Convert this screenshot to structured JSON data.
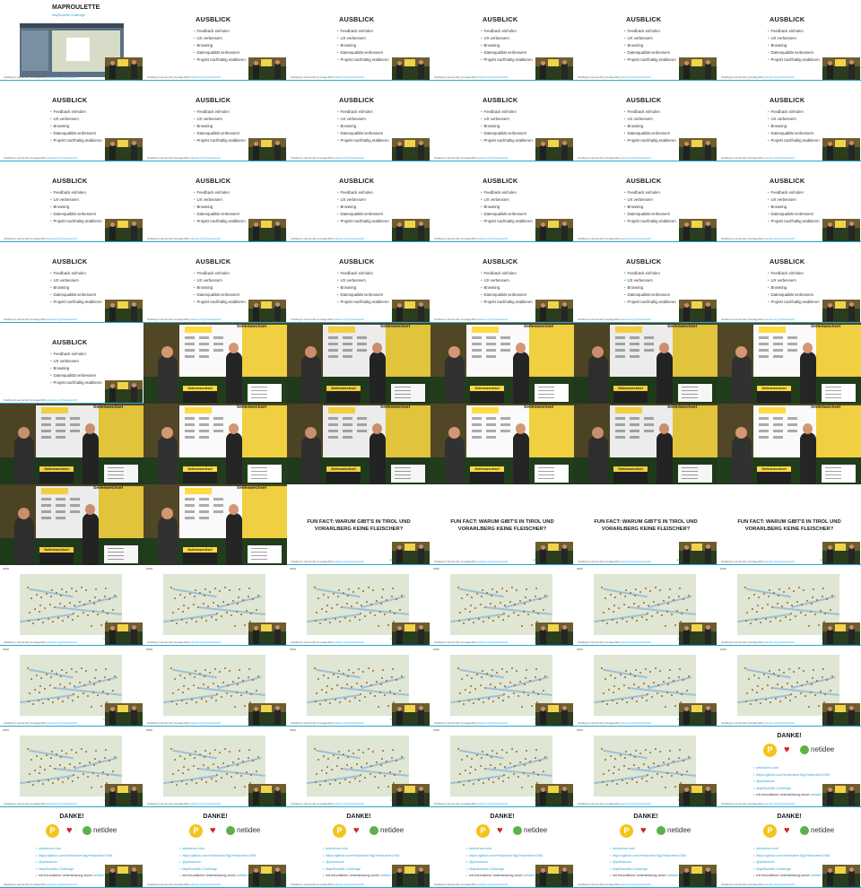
{
  "footer": {
    "text": "Vorarlberg im Lauf der Zeit | Linuxtage 2024",
    "link": "yetanother.org",
    "handle": "@Yetanotherstuff"
  },
  "maproulette": {
    "title": "MAPROULETTE",
    "subtitle": "MapRoulette-Challenge"
  },
  "ausblick": {
    "title": "AUSBLICK",
    "items": [
      "Feedback einholen",
      "UX verbessern",
      "Browsing",
      "Datenqualität verbessern",
      "Projekt nachhaltig etablieren"
    ]
  },
  "photo": {
    "sign": "Seitenwechsel"
  },
  "funfact": {
    "title": "FUN FACT: WARUM GIBT'S IN TIROL UND VORARLBERG KEINE FLEISCHER?"
  },
  "danke": {
    "title": "DANKE!",
    "logo_text": "netidee",
    "links": [
      "yetowcom.com",
      "https://github.com/YetAnotherTag/YetAnotherOSM",
      "@yetowcom",
      "MapRoulette-Challenge"
    ],
    "support_prefix": "mit freundlicher Unterstützung durch",
    "support_org": "netidee"
  },
  "tiles": [
    {
      "kind": "maproulette"
    },
    {
      "kind": "ausblick"
    },
    {
      "kind": "ausblick"
    },
    {
      "kind": "ausblick"
    },
    {
      "kind": "ausblick"
    },
    {
      "kind": "ausblick"
    },
    {
      "kind": "ausblick"
    },
    {
      "kind": "ausblick"
    },
    {
      "kind": "ausblick"
    },
    {
      "kind": "ausblick"
    },
    {
      "kind": "ausblick"
    },
    {
      "kind": "ausblick"
    },
    {
      "kind": "ausblick"
    },
    {
      "kind": "ausblick"
    },
    {
      "kind": "ausblick"
    },
    {
      "kind": "ausblick"
    },
    {
      "kind": "ausblick"
    },
    {
      "kind": "ausblick"
    },
    {
      "kind": "ausblick"
    },
    {
      "kind": "ausblick"
    },
    {
      "kind": "ausblick"
    },
    {
      "kind": "ausblick"
    },
    {
      "kind": "ausblick"
    },
    {
      "kind": "ausblick"
    },
    {
      "kind": "ausblick"
    },
    {
      "kind": "photo"
    },
    {
      "kind": "photo"
    },
    {
      "kind": "photo"
    },
    {
      "kind": "photo"
    },
    {
      "kind": "photo"
    },
    {
      "kind": "photo"
    },
    {
      "kind": "photo"
    },
    {
      "kind": "photo"
    },
    {
      "kind": "photo"
    },
    {
      "kind": "photo"
    },
    {
      "kind": "photo"
    },
    {
      "kind": "photo"
    },
    {
      "kind": "photo"
    },
    {
      "kind": "funfact"
    },
    {
      "kind": "funfact"
    },
    {
      "kind": "funfact"
    },
    {
      "kind": "funfact"
    },
    {
      "kind": "map"
    },
    {
      "kind": "map"
    },
    {
      "kind": "map"
    },
    {
      "kind": "map"
    },
    {
      "kind": "map"
    },
    {
      "kind": "map"
    },
    {
      "kind": "map"
    },
    {
      "kind": "map"
    },
    {
      "kind": "map"
    },
    {
      "kind": "map"
    },
    {
      "kind": "map"
    },
    {
      "kind": "map"
    },
    {
      "kind": "map"
    },
    {
      "kind": "map"
    },
    {
      "kind": "map"
    },
    {
      "kind": "map"
    },
    {
      "kind": "map"
    },
    {
      "kind": "danke"
    },
    {
      "kind": "danke"
    },
    {
      "kind": "danke"
    },
    {
      "kind": "danke"
    },
    {
      "kind": "danke"
    },
    {
      "kind": "danke"
    },
    {
      "kind": "danke"
    }
  ],
  "colors": {
    "accent": "#27a4d8",
    "heart": "#d5232e",
    "netidee_green": "#5cb247",
    "pin_yellow": "#f4c31c"
  }
}
